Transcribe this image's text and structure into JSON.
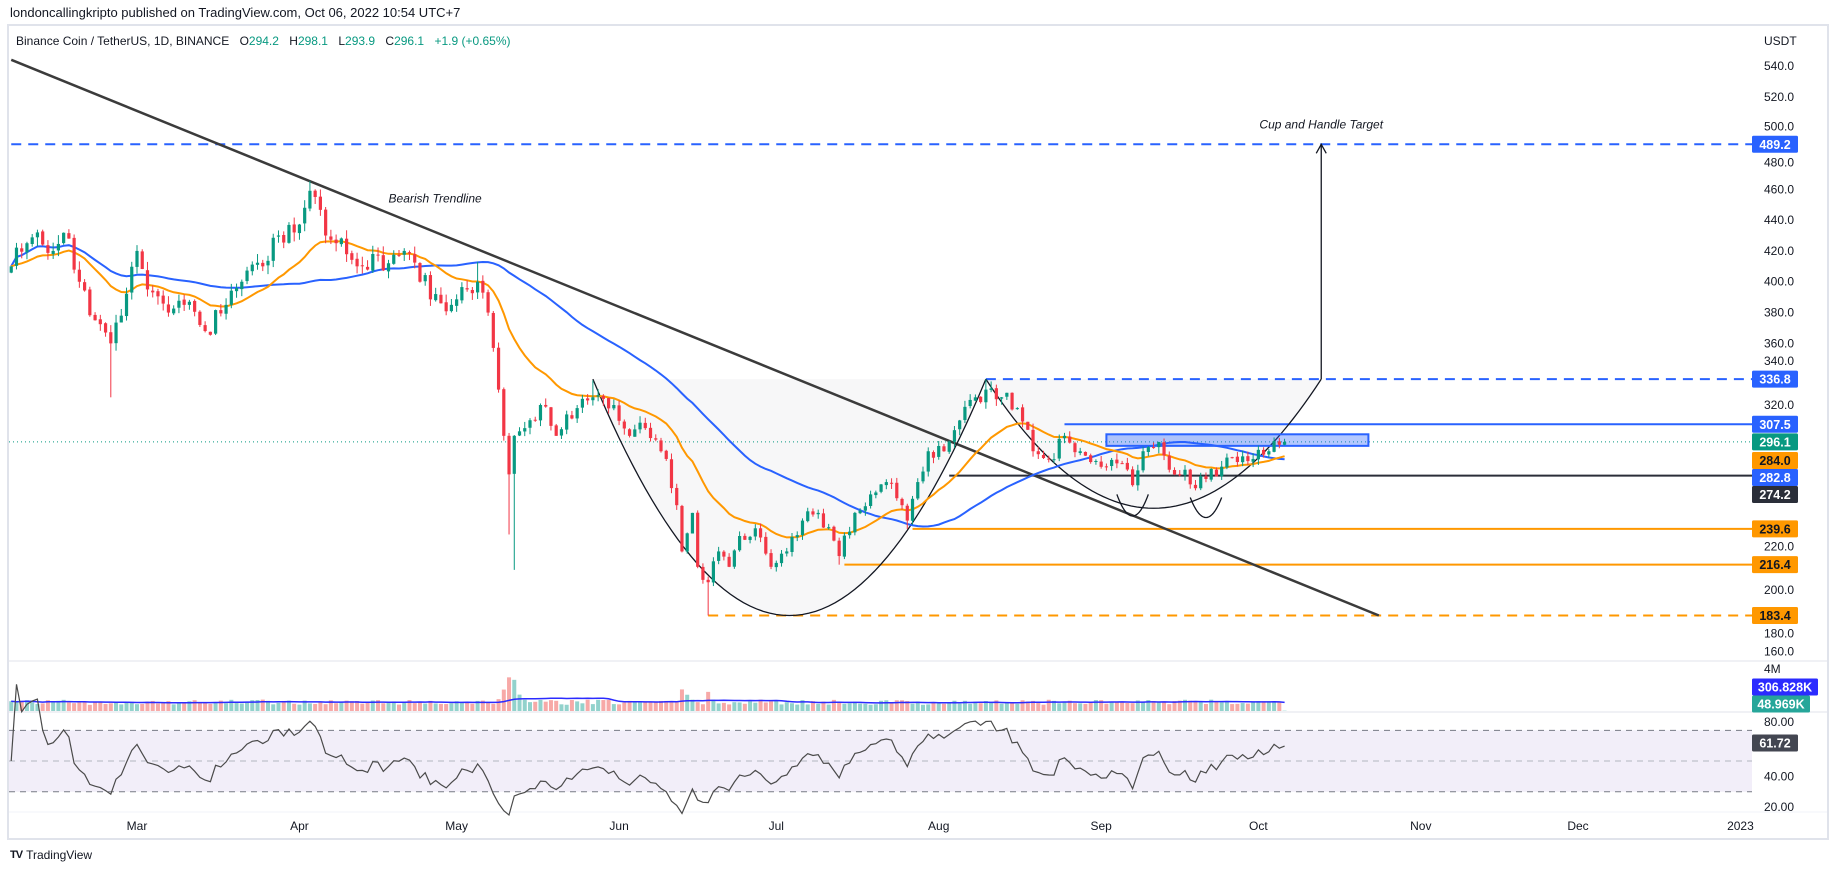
{
  "header": {
    "publisher": "londoncallingkripto published on TradingView.com, Oct 06, 2022 10:54 UTC+7"
  },
  "legend": {
    "symbol": "Binance Coin / TetherUS, 1D, BINANCE",
    "o_label": "O",
    "o": "294.2",
    "h_label": "H",
    "h": "298.1",
    "l_label": "L",
    "l": "293.9",
    "c_label": "C",
    "c": "296.1",
    "change": "+1.9 (+0.65%)"
  },
  "footer": {
    "brand": "TradingView",
    "logo": "TV"
  },
  "colors": {
    "up": "#089981",
    "down": "#f23645",
    "ema": "#ff9800",
    "sma": "#2962ff",
    "blue": "#2962ff",
    "orange": "#ff9800",
    "dark": "#2a2e39",
    "trend": "#3b3b3b"
  },
  "chart_data": {
    "type": "candlestick",
    "title": "Binance Coin / TetherUS, 1D, BINANCE",
    "ylabel": "USDT",
    "ylim": [
      160,
      540
    ],
    "price_ticks": [
      "540.0",
      "520.0",
      "500.0",
      "480.0",
      "460.0",
      "440.0",
      "420.0",
      "400.0",
      "380.0",
      "360.0",
      "340.0",
      "320.0",
      "220.0",
      "200.0",
      "180.0",
      "160.0"
    ],
    "months": [
      {
        "label": "Mar",
        "d": "2022-03-01"
      },
      {
        "label": "Apr",
        "d": "2022-04-01"
      },
      {
        "label": "May",
        "d": "2022-05-01"
      },
      {
        "label": "Jun",
        "d": "2022-06-01"
      },
      {
        "label": "Jul",
        "d": "2022-07-01"
      },
      {
        "label": "Aug",
        "d": "2022-08-01"
      },
      {
        "label": "Sep",
        "d": "2022-09-01"
      },
      {
        "label": "Oct",
        "d": "2022-10-01"
      },
      {
        "label": "Nov",
        "d": "2022-11-01"
      },
      {
        "label": "Dec",
        "d": "2022-12-01"
      },
      {
        "label": "2023",
        "d": "2023-01-01"
      }
    ],
    "close_anchors": [
      {
        "d": "2022-02-05",
        "c": 410
      },
      {
        "d": "2022-02-08",
        "c": 425
      },
      {
        "d": "2022-02-10",
        "c": 432
      },
      {
        "d": "2022-02-13",
        "c": 420
      },
      {
        "d": "2022-02-16",
        "c": 428
      },
      {
        "d": "2022-02-18",
        "c": 400
      },
      {
        "d": "2022-02-21",
        "c": 375
      },
      {
        "d": "2022-02-24",
        "c": 360,
        "l": 325
      },
      {
        "d": "2022-02-26",
        "c": 378
      },
      {
        "d": "2022-03-01",
        "c": 420
      },
      {
        "d": "2022-03-03",
        "c": 395
      },
      {
        "d": "2022-03-07",
        "c": 380
      },
      {
        "d": "2022-03-10",
        "c": 385
      },
      {
        "d": "2022-03-14",
        "c": 368
      },
      {
        "d": "2022-03-18",
        "c": 385
      },
      {
        "d": "2022-03-21",
        "c": 400
      },
      {
        "d": "2022-03-25",
        "c": 410
      },
      {
        "d": "2022-03-28",
        "c": 430
      },
      {
        "d": "2022-03-31",
        "c": 432
      },
      {
        "d": "2022-04-02",
        "c": 448
      },
      {
        "d": "2022-04-04",
        "c": 455,
        "h": 460
      },
      {
        "d": "2022-04-06",
        "c": 430
      },
      {
        "d": "2022-04-08",
        "c": 425
      },
      {
        "d": "2022-04-12",
        "c": 410
      },
      {
        "d": "2022-04-15",
        "c": 418
      },
      {
        "d": "2022-04-18",
        "c": 412
      },
      {
        "d": "2022-04-21",
        "c": 420
      },
      {
        "d": "2022-04-24",
        "c": 400
      },
      {
        "d": "2022-04-27",
        "c": 392
      },
      {
        "d": "2022-04-30",
        "c": 385
      },
      {
        "d": "2022-05-03",
        "c": 395
      },
      {
        "d": "2022-05-05",
        "c": 400,
        "h": 413
      },
      {
        "d": "2022-05-07",
        "c": 380
      },
      {
        "d": "2022-05-09",
        "c": 330
      },
      {
        "d": "2022-05-10",
        "c": 300
      },
      {
        "d": "2022-05-11",
        "c": 275,
        "l": 236
      },
      {
        "d": "2022-05-12",
        "c": 300,
        "l": 213
      },
      {
        "d": "2022-05-14",
        "c": 305
      },
      {
        "d": "2022-05-17",
        "c": 320
      },
      {
        "d": "2022-05-20",
        "c": 300
      },
      {
        "d": "2022-05-24",
        "c": 318
      },
      {
        "d": "2022-05-27",
        "c": 325,
        "h": 336
      },
      {
        "d": "2022-05-31",
        "c": 320
      },
      {
        "d": "2022-06-03",
        "c": 300
      },
      {
        "d": "2022-06-06",
        "c": 305
      },
      {
        "d": "2022-06-09",
        "c": 290
      },
      {
        "d": "2022-06-10",
        "c": 285
      },
      {
        "d": "2022-06-12",
        "c": 255
      },
      {
        "d": "2022-06-13",
        "c": 225
      },
      {
        "d": "2022-06-15",
        "c": 250
      },
      {
        "d": "2022-06-16",
        "c": 215
      },
      {
        "d": "2022-06-18",
        "c": 205,
        "l": 183.4
      },
      {
        "d": "2022-06-20",
        "c": 225
      },
      {
        "d": "2022-06-22",
        "c": 215
      },
      {
        "d": "2022-06-24",
        "c": 235
      },
      {
        "d": "2022-06-27",
        "c": 240
      },
      {
        "d": "2022-06-30",
        "c": 215
      },
      {
        "d": "2022-07-03",
        "c": 225
      },
      {
        "d": "2022-07-06",
        "c": 245
      },
      {
        "d": "2022-07-09",
        "c": 250
      },
      {
        "d": "2022-07-12",
        "c": 232
      },
      {
        "d": "2022-07-13",
        "c": 222,
        "l": 216.4
      },
      {
        "d": "2022-07-16",
        "c": 250
      },
      {
        "d": "2022-07-19",
        "c": 262
      },
      {
        "d": "2022-07-22",
        "c": 270
      },
      {
        "d": "2022-07-25",
        "c": 255
      },
      {
        "d": "2022-07-26",
        "c": 245,
        "l": 239.6
      },
      {
        "d": "2022-07-28",
        "c": 270
      },
      {
        "d": "2022-07-30",
        "c": 290
      },
      {
        "d": "2022-08-02",
        "c": 290
      },
      {
        "d": "2022-08-05",
        "c": 310
      },
      {
        "d": "2022-08-08",
        "c": 325
      },
      {
        "d": "2022-08-10",
        "c": 330,
        "h": 336.8
      },
      {
        "d": "2022-08-13",
        "c": 325
      },
      {
        "d": "2022-08-16",
        "c": 318
      },
      {
        "d": "2022-08-19",
        "c": 290
      },
      {
        "d": "2022-08-22",
        "c": 285
      },
      {
        "d": "2022-08-25",
        "c": 300
      },
      {
        "d": "2022-08-28",
        "c": 290
      },
      {
        "d": "2022-08-30",
        "c": 283
      },
      {
        "d": "2022-09-02",
        "c": 280
      },
      {
        "d": "2022-09-05",
        "c": 282
      },
      {
        "d": "2022-09-07",
        "c": 268
      },
      {
        "d": "2022-09-09",
        "c": 290
      },
      {
        "d": "2022-09-12",
        "c": 296
      },
      {
        "d": "2022-09-14",
        "c": 278
      },
      {
        "d": "2022-09-17",
        "c": 278
      },
      {
        "d": "2022-09-19",
        "c": 266
      },
      {
        "d": "2022-09-21",
        "c": 272
      },
      {
        "d": "2022-09-24",
        "c": 280
      },
      {
        "d": "2022-09-27",
        "c": 283
      },
      {
        "d": "2022-09-30",
        "c": 285
      },
      {
        "d": "2022-10-03",
        "c": 290
      },
      {
        "d": "2022-10-05",
        "c": 294.2
      },
      {
        "d": "2022-10-06",
        "c": 296.1,
        "o": 294.2,
        "h": 298.1,
        "l": 293.9
      }
    ],
    "indicators": {
      "ema_period": 20,
      "sma_period": 50,
      "rsi_period": 14,
      "volume_ma_period": 20
    },
    "volume_spikes": [
      {
        "d": "2022-05-09",
        "f": 1.5
      },
      {
        "d": "2022-05-10",
        "f": 2.4
      },
      {
        "d": "2022-05-11",
        "f": 3.4
      },
      {
        "d": "2022-05-12",
        "f": 4.6
      },
      {
        "d": "2022-05-13",
        "f": 1.8
      },
      {
        "d": "2022-06-13",
        "f": 2.6
      },
      {
        "d": "2022-06-14",
        "f": 2.1
      },
      {
        "d": "2022-06-18",
        "f": 1.8
      },
      {
        "d": "2022-10-06",
        "f": 0.05
      }
    ],
    "levels": [
      {
        "price": 489.2,
        "from": "2022-02-05",
        "style": "dashed",
        "color": "#2962ff"
      },
      {
        "price": 336.8,
        "from": "2022-08-10",
        "style": "dashed",
        "color": "#2962ff"
      },
      {
        "price": 307.5,
        "from": "2022-08-25",
        "style": "solid",
        "color": "#2962ff"
      },
      {
        "price": 274.2,
        "from": "2022-08-03",
        "style": "solid",
        "color": "#2a2e39"
      },
      {
        "price": 239.6,
        "from": "2022-07-27",
        "style": "solid",
        "color": "#ff9800"
      },
      {
        "price": 216.4,
        "from": "2022-07-14",
        "style": "solid",
        "color": "#ff9800"
      },
      {
        "price": 183.4,
        "from": "2022-06-18",
        "style": "dashed",
        "color": "#ff9800"
      }
    ],
    "last_price": 296.1,
    "trendline": {
      "from": {
        "d": "2022-02-05",
        "p": 544
      },
      "to": {
        "d": "2022-10-24",
        "p": 183.4
      }
    },
    "cups": [
      {
        "from": "2022-05-27",
        "to": "2022-08-10",
        "top": 336.8,
        "bottom": 183.4
      },
      {
        "from": "2022-08-10",
        "to": "2022-10-13",
        "top": 336.8,
        "bottom": 253
      },
      {
        "from": "2022-09-04",
        "to": "2022-09-10",
        "top": 262,
        "bottom": 248
      },
      {
        "from": "2022-09-18",
        "to": "2022-09-24",
        "top": 260,
        "bottom": 247
      }
    ],
    "zone": {
      "from": "2022-09-02",
      "to": "2022-10-22",
      "low": 293.5,
      "high": 301
    },
    "target_arrow": {
      "d": "2022-10-13",
      "from": 336.8,
      "to": 489.2
    },
    "annotations": [
      {
        "text": "Bearish Trendline",
        "d": "2022-04-18",
        "p": 454,
        "align": "start"
      },
      {
        "text": "Cup and Handle Target",
        "d": "2022-10-13",
        "p": 502,
        "align": "middle"
      }
    ],
    "price_badges": [
      {
        "price": 489.2,
        "label": "489.2",
        "bg": "#2962ff",
        "fg": "#ffffff"
      },
      {
        "price": 336.8,
        "label": "336.8",
        "bg": "#2962ff",
        "fg": "#ffffff"
      },
      {
        "price": 307.5,
        "label": "307.5",
        "bg": "#2962ff",
        "fg": "#ffffff"
      },
      {
        "price": 296.1,
        "label": "296.1",
        "bg": "#089981",
        "fg": "#ffffff"
      },
      {
        "price": 284.0,
        "label": "284.0",
        "bg": "#ff9800",
        "fg": "#131722"
      },
      {
        "price": 282.8,
        "label": "282.8",
        "bg": "#2962ff",
        "fg": "#ffffff"
      },
      {
        "price": 274.2,
        "label": "274.2",
        "bg": "#2a2e39",
        "fg": "#ffffff"
      },
      {
        "price": 239.6,
        "label": "239.6",
        "bg": "#ff9800",
        "fg": "#131722"
      },
      {
        "price": 216.4,
        "label": "216.4",
        "bg": "#ff9800",
        "fg": "#131722"
      },
      {
        "price": 183.4,
        "label": "183.4",
        "bg": "#ff9800",
        "fg": "#131722"
      }
    ],
    "volume": {
      "tick": "4M",
      "tick_value": 4000000,
      "ma_label": "306.828K",
      "ma_bg": "#2b2bff",
      "last_label": "48.969K",
      "last_bg": "#26a69a"
    },
    "rsi": {
      "ticks": [
        "80.00",
        "40.00",
        "20.00"
      ],
      "tick_values": [
        80,
        40,
        20
      ],
      "last": 61.72,
      "last_label": "61.72",
      "upper": 70,
      "middle": 50,
      "lower": 30
    }
  }
}
